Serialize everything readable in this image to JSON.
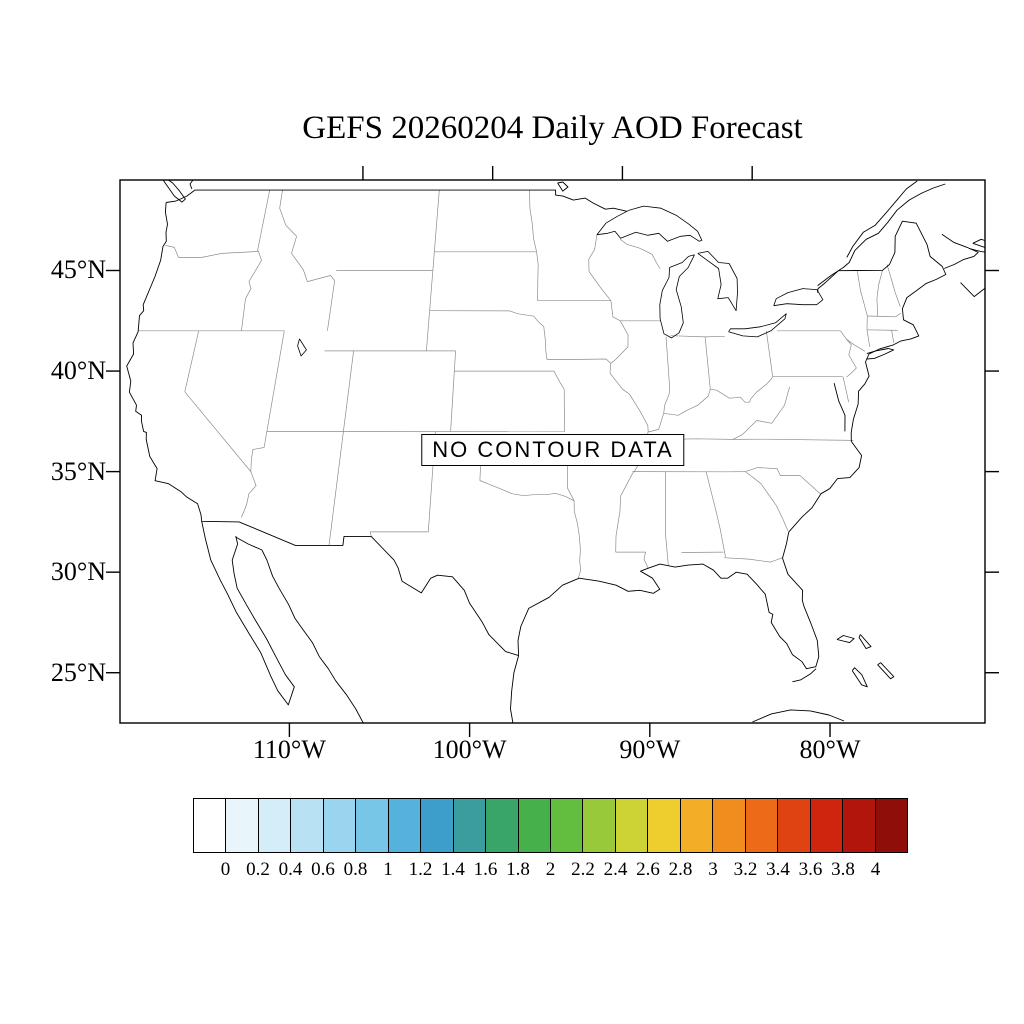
{
  "title": "GEFS 20260204 Daily AOD Forecast",
  "map": {
    "no_data_label": "NO CONTOUR DATA",
    "lat_tick_labels": [
      "45°N",
      "40°N",
      "35°N",
      "30°N",
      "25°N"
    ],
    "lon_tick_labels": [
      "110°W",
      "100°W",
      "90°W",
      "80°W"
    ]
  },
  "colorbar": {
    "labels": [
      "0",
      "0.2",
      "0.4",
      "0.6",
      "0.8",
      "1",
      "1.2",
      "1.4",
      "1.6",
      "1.8",
      "2",
      "2.2",
      "2.4",
      "2.6",
      "2.8",
      "3",
      "3.2",
      "3.4",
      "3.6",
      "3.8",
      "4"
    ],
    "colors": [
      "#ffffff",
      "#e8f6fc",
      "#d3edf9",
      "#b8e2f4",
      "#99d5ef",
      "#77c5e7",
      "#55b2dc",
      "#3e9ecb",
      "#3a9e9f",
      "#3aa568",
      "#46b14a",
      "#63bd3e",
      "#97c93a",
      "#cdd334",
      "#eece2e",
      "#f3ad26",
      "#f18c1f",
      "#ec6a18",
      "#e04312",
      "#cf250e",
      "#b2150c",
      "#8f0e09"
    ]
  },
  "chart_data": {
    "type": "heatmap",
    "title": "GEFS 20260204 Daily AOD Forecast",
    "annotation": "NO CONTOUR DATA",
    "region": "Continental United States",
    "x_axis": {
      "label": "longitude",
      "ticks": [
        "110°W",
        "100°W",
        "90°W",
        "80°W"
      ]
    },
    "y_axis": {
      "label": "latitude",
      "ticks": [
        "45°N",
        "40°N",
        "35°N",
        "30°N",
        "25°N"
      ]
    },
    "values": [],
    "colorbar_levels": [
      0,
      0.2,
      0.4,
      0.6,
      0.8,
      1,
      1.2,
      1.4,
      1.6,
      1.8,
      2,
      2.2,
      2.4,
      2.6,
      2.8,
      3,
      3.2,
      3.4,
      3.6,
      3.8,
      4
    ],
    "colorbar_colors": [
      "#ffffff",
      "#e8f6fc",
      "#d3edf9",
      "#b8e2f4",
      "#99d5ef",
      "#77c5e7",
      "#55b2dc",
      "#3e9ecb",
      "#3a9e9f",
      "#3aa568",
      "#46b14a",
      "#63bd3e",
      "#97c93a",
      "#cdd334",
      "#eece2e",
      "#f3ad26",
      "#f18c1f",
      "#ec6a18",
      "#e04312",
      "#cf250e",
      "#b2150c",
      "#8f0e09"
    ],
    "legend_position": "bottom",
    "grid": false
  }
}
